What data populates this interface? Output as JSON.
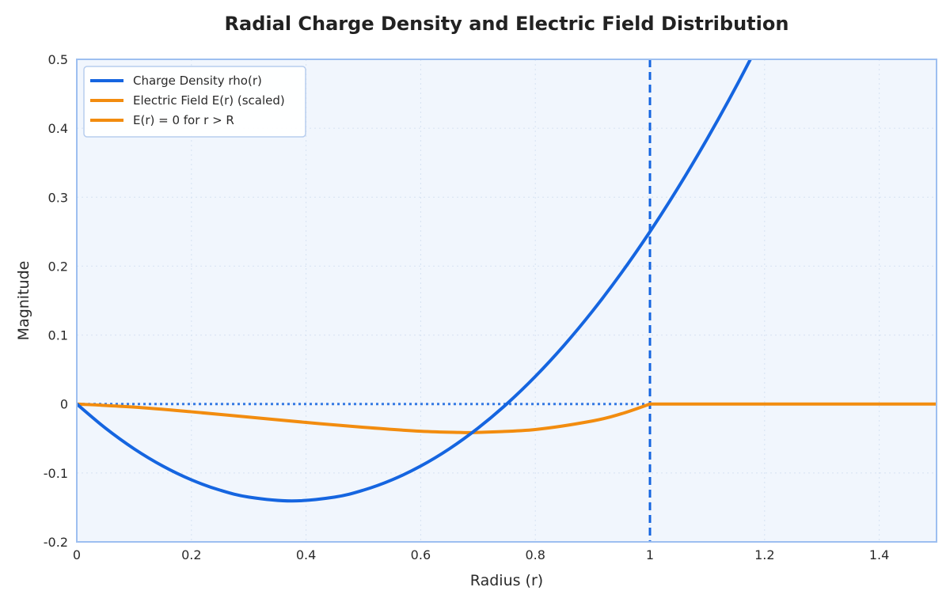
{
  "chart_data": {
    "type": "line",
    "title": "Radial Charge Density and Electric Field Distribution",
    "xlabel": "Radius (r)",
    "ylabel": "Magnitude",
    "xlim": [
      0,
      1.5
    ],
    "ylim": [
      -0.2,
      0.5
    ],
    "x_ticks": [
      0,
      0.2,
      0.4,
      0.6,
      0.8,
      1,
      1.2,
      1.4
    ],
    "x_tick_labels": [
      "0",
      "0.2",
      "0.4",
      "0.6",
      "0.8",
      "1",
      "1.2",
      "1.4"
    ],
    "y_ticks": [
      -0.2,
      -0.1,
      0,
      0.1,
      0.2,
      0.3,
      0.4,
      0.5
    ],
    "y_tick_labels": [
      "-0.2",
      "-0.1",
      "0",
      "0.1",
      "0.2",
      "0.3",
      "0.4",
      "0.5"
    ],
    "grid": true,
    "legend_position": "top-left",
    "reference_lines": [
      {
        "orientation": "vertical",
        "x": 1,
        "style": "dashed",
        "color": "#1565e0"
      },
      {
        "orientation": "horizontal",
        "y": 0,
        "style": "dotted",
        "color": "#1565e0"
      }
    ],
    "series": [
      {
        "name": "Charge Density rho(r)",
        "color": "#1565e0",
        "x": [
          0,
          0.05,
          0.1,
          0.15,
          0.2,
          0.25,
          0.3,
          0.375,
          0.45,
          0.5,
          0.55,
          0.6,
          0.65,
          0.7,
          0.75,
          0.8,
          0.85,
          0.9,
          0.95,
          1.0,
          1.05,
          1.1,
          1.15,
          1.2
        ],
        "y": [
          0,
          -0.035,
          -0.065,
          -0.09,
          -0.11,
          -0.125,
          -0.135,
          -0.1406,
          -0.135,
          -0.125,
          -0.11,
          -0.09,
          -0.065,
          -0.035,
          0,
          0.04,
          0.085,
          0.135,
          0.19,
          0.25,
          0.315,
          0.385,
          0.46,
          0.54
        ]
      },
      {
        "name": "Electric Field E(r) (scaled)",
        "color": "#f28c0f",
        "x": [
          0,
          0.1,
          0.2,
          0.3,
          0.4,
          0.5,
          0.6,
          0.667,
          0.7,
          0.8,
          0.9,
          0.95,
          1.0
        ],
        "y": [
          0,
          -0.0045,
          -0.0113,
          -0.019,
          -0.0267,
          -0.0338,
          -0.0395,
          -0.0412,
          -0.0412,
          -0.037,
          -0.0246,
          -0.0142,
          0
        ]
      },
      {
        "name": "E(r) = 0 for r > R",
        "color": "#f28c0f",
        "x": [
          1,
          1.5
        ],
        "y": [
          0,
          0
        ]
      }
    ]
  }
}
